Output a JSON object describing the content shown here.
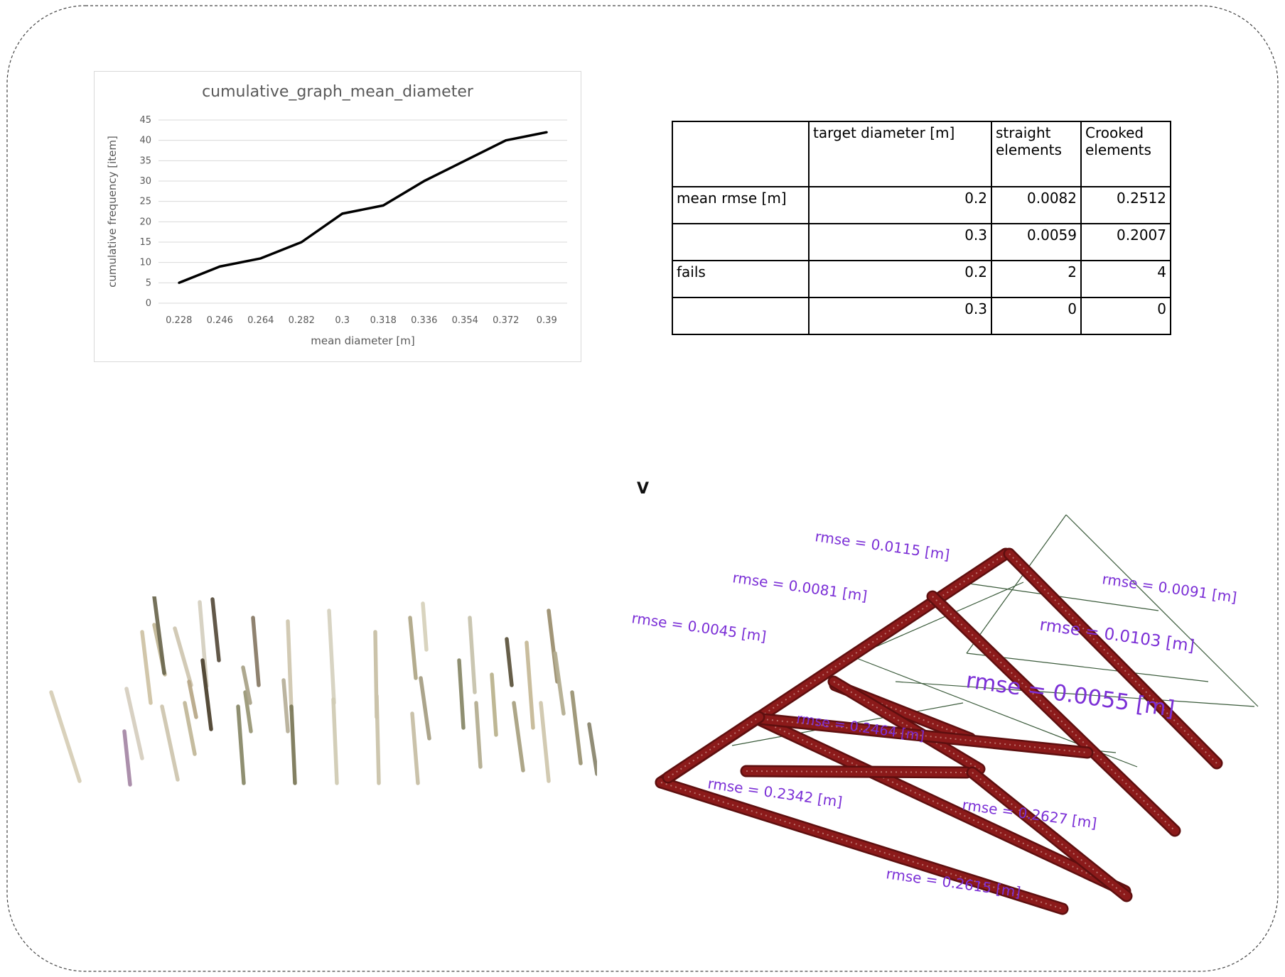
{
  "chart_data": {
    "type": "line",
    "title": "cumulative_graph_mean_diameter",
    "xlabel": "mean diameter [m]",
    "ylabel": "cumulative frequency [item]",
    "categories": [
      "0.228",
      "0.246",
      "0.264",
      "0.282",
      "0.3",
      "0.318",
      "0.336",
      "0.354",
      "0.372",
      "0.39"
    ],
    "values": [
      5,
      9,
      11,
      15,
      22,
      24,
      30,
      35,
      40,
      42
    ],
    "y_ticks": [
      "0",
      "5",
      "10",
      "15",
      "20",
      "25",
      "30",
      "35",
      "40",
      "45"
    ],
    "ylim": [
      0,
      45
    ],
    "grid": true,
    "legend": "none",
    "line_color": "#000000"
  },
  "table": {
    "headers": [
      "",
      "target diameter [m]",
      "straight elements",
      "Crooked elements"
    ],
    "rows": [
      [
        "mean rmse [m]",
        "0.2",
        "0.0082",
        "0.2512"
      ],
      [
        "",
        "0.3",
        "0.0059",
        "0.2007"
      ],
      [
        "fails",
        "0.2",
        "2",
        "4"
      ],
      [
        "",
        "0.3",
        "0",
        "0"
      ]
    ]
  },
  "figure_label": "V",
  "rmse_labels": [
    "rmse = 0.0115 [m]",
    "rmse = 0.0081 [m]",
    "rmse = 0.0045 [m]",
    "rmse = 0.0091 [m]",
    "rmse = 0.0103 [m]",
    "rmse = 0.0055 [m]",
    "rmse = 0.2464 [m]",
    "rmse = 0.2342 [m]",
    "rmse = 0.2627 [m]",
    "rmse = 0.2615 [m]"
  ],
  "colors": {
    "rmse_text": "#7b2fd6",
    "member_red": "#8b1a1a",
    "chart_line": "#000000",
    "grid": "#d9d9d9"
  }
}
